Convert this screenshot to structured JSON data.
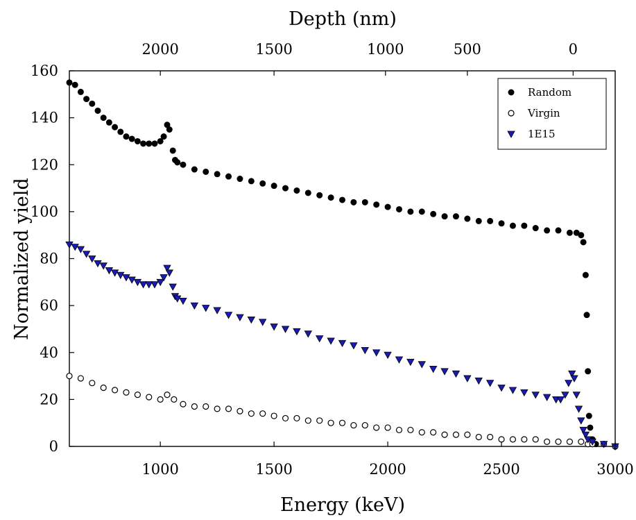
{
  "chart_data": {
    "type": "scatter",
    "title": "",
    "xlabel": "Energy (keV)",
    "ylabel": "Normalized yield",
    "x2label": "Depth (nm)",
    "xlim": [
      600,
      3000
    ],
    "ylim": [
      0,
      160
    ],
    "xticks": [
      1000,
      1500,
      2000,
      2500,
      3000
    ],
    "yticks": [
      0,
      20,
      40,
      60,
      80,
      100,
      120,
      140,
      160
    ],
    "x2ticks": [
      {
        "label": "2000",
        "energy": 1000
      },
      {
        "label": "1500",
        "energy": 1500
      },
      {
        "label": "1000",
        "energy": 1990
      },
      {
        "label": "500",
        "energy": 2350
      },
      {
        "label": "0",
        "energy": 2815
      }
    ],
    "legend_position": "top-right",
    "grid": false,
    "series": [
      {
        "name": "Random",
        "marker": "filled-circle",
        "color": "#000000",
        "points": [
          [
            600,
            155
          ],
          [
            625,
            154
          ],
          [
            650,
            151
          ],
          [
            675,
            148
          ],
          [
            700,
            146
          ],
          [
            725,
            143
          ],
          [
            750,
            140
          ],
          [
            775,
            138
          ],
          [
            800,
            136
          ],
          [
            825,
            134
          ],
          [
            850,
            132
          ],
          [
            875,
            131
          ],
          [
            900,
            130
          ],
          [
            925,
            129
          ],
          [
            950,
            129
          ],
          [
            975,
            129
          ],
          [
            1000,
            130
          ],
          [
            1015,
            132
          ],
          [
            1030,
            137
          ],
          [
            1040,
            135
          ],
          [
            1055,
            126
          ],
          [
            1065,
            122
          ],
          [
            1075,
            121
          ],
          [
            1100,
            120
          ],
          [
            1150,
            118
          ],
          [
            1200,
            117
          ],
          [
            1250,
            116
          ],
          [
            1300,
            115
          ],
          [
            1350,
            114
          ],
          [
            1400,
            113
          ],
          [
            1450,
            112
          ],
          [
            1500,
            111
          ],
          [
            1550,
            110
          ],
          [
            1600,
            109
          ],
          [
            1650,
            108
          ],
          [
            1700,
            107
          ],
          [
            1750,
            106
          ],
          [
            1800,
            105
          ],
          [
            1850,
            104
          ],
          [
            1900,
            104
          ],
          [
            1950,
            103
          ],
          [
            2000,
            102
          ],
          [
            2050,
            101
          ],
          [
            2100,
            100
          ],
          [
            2150,
            100
          ],
          [
            2200,
            99
          ],
          [
            2250,
            98
          ],
          [
            2300,
            98
          ],
          [
            2350,
            97
          ],
          [
            2400,
            96
          ],
          [
            2450,
            96
          ],
          [
            2500,
            95
          ],
          [
            2550,
            94
          ],
          [
            2600,
            94
          ],
          [
            2650,
            93
          ],
          [
            2700,
            92
          ],
          [
            2750,
            92
          ],
          [
            2800,
            91
          ],
          [
            2830,
            91
          ],
          [
            2850,
            90
          ],
          [
            2860,
            87
          ],
          [
            2870,
            73
          ],
          [
            2875,
            56
          ],
          [
            2880,
            32
          ],
          [
            2885,
            13
          ],
          [
            2890,
            8
          ],
          [
            2900,
            3
          ],
          [
            2915,
            1
          ],
          [
            2950,
            1
          ],
          [
            3000,
            0
          ]
        ]
      },
      {
        "name": "Virgin",
        "marker": "open-circle",
        "color": "#000000",
        "points": [
          [
            600,
            30
          ],
          [
            650,
            29
          ],
          [
            700,
            27
          ],
          [
            750,
            25
          ],
          [
            800,
            24
          ],
          [
            850,
            23
          ],
          [
            900,
            22
          ],
          [
            950,
            21
          ],
          [
            1000,
            20
          ],
          [
            1030,
            22
          ],
          [
            1060,
            20
          ],
          [
            1100,
            18
          ],
          [
            1150,
            17
          ],
          [
            1200,
            17
          ],
          [
            1250,
            16
          ],
          [
            1300,
            16
          ],
          [
            1350,
            15
          ],
          [
            1400,
            14
          ],
          [
            1450,
            14
          ],
          [
            1500,
            13
          ],
          [
            1550,
            12
          ],
          [
            1600,
            12
          ],
          [
            1650,
            11
          ],
          [
            1700,
            11
          ],
          [
            1750,
            10
          ],
          [
            1800,
            10
          ],
          [
            1850,
            9
          ],
          [
            1900,
            9
          ],
          [
            1950,
            8
          ],
          [
            2000,
            8
          ],
          [
            2050,
            7
          ],
          [
            2100,
            7
          ],
          [
            2150,
            6
          ],
          [
            2200,
            6
          ],
          [
            2250,
            5
          ],
          [
            2300,
            5
          ],
          [
            2350,
            5
          ],
          [
            2400,
            4
          ],
          [
            2450,
            4
          ],
          [
            2500,
            3
          ],
          [
            2550,
            3
          ],
          [
            2600,
            3
          ],
          [
            2650,
            3
          ],
          [
            2700,
            2
          ],
          [
            2750,
            2
          ],
          [
            2800,
            2
          ],
          [
            2850,
            2
          ],
          [
            2880,
            1
          ],
          [
            2900,
            1
          ],
          [
            2950,
            1
          ],
          [
            3000,
            0
          ]
        ]
      },
      {
        "name": "1E15",
        "marker": "filled-triangle-down",
        "color": "#1a1ab4",
        "points": [
          [
            600,
            86
          ],
          [
            625,
            85
          ],
          [
            650,
            84
          ],
          [
            675,
            82
          ],
          [
            700,
            80
          ],
          [
            725,
            78
          ],
          [
            750,
            77
          ],
          [
            775,
            75
          ],
          [
            800,
            74
          ],
          [
            825,
            73
          ],
          [
            850,
            72
          ],
          [
            875,
            71
          ],
          [
            900,
            70
          ],
          [
            925,
            69
          ],
          [
            950,
            69
          ],
          [
            975,
            69
          ],
          [
            1000,
            70
          ],
          [
            1015,
            72
          ],
          [
            1030,
            76
          ],
          [
            1040,
            74
          ],
          [
            1055,
            68
          ],
          [
            1065,
            64
          ],
          [
            1075,
            63
          ],
          [
            1100,
            62
          ],
          [
            1150,
            60
          ],
          [
            1200,
            59
          ],
          [
            1250,
            58
          ],
          [
            1300,
            56
          ],
          [
            1350,
            55
          ],
          [
            1400,
            54
          ],
          [
            1450,
            53
          ],
          [
            1500,
            51
          ],
          [
            1550,
            50
          ],
          [
            1600,
            49
          ],
          [
            1650,
            48
          ],
          [
            1700,
            46
          ],
          [
            1750,
            45
          ],
          [
            1800,
            44
          ],
          [
            1850,
            43
          ],
          [
            1900,
            41
          ],
          [
            1950,
            40
          ],
          [
            2000,
            39
          ],
          [
            2050,
            37
          ],
          [
            2100,
            36
          ],
          [
            2150,
            35
          ],
          [
            2200,
            33
          ],
          [
            2250,
            32
          ],
          [
            2300,
            31
          ],
          [
            2350,
            29
          ],
          [
            2400,
            28
          ],
          [
            2450,
            27
          ],
          [
            2500,
            25
          ],
          [
            2550,
            24
          ],
          [
            2600,
            23
          ],
          [
            2650,
            22
          ],
          [
            2700,
            21
          ],
          [
            2740,
            20
          ],
          [
            2760,
            20
          ],
          [
            2780,
            22
          ],
          [
            2795,
            27
          ],
          [
            2810,
            31
          ],
          [
            2820,
            29
          ],
          [
            2830,
            22
          ],
          [
            2840,
            16
          ],
          [
            2850,
            11
          ],
          [
            2860,
            7
          ],
          [
            2870,
            5
          ],
          [
            2880,
            3
          ],
          [
            2900,
            2
          ],
          [
            2950,
            1
          ],
          [
            3000,
            0
          ]
        ]
      }
    ]
  }
}
